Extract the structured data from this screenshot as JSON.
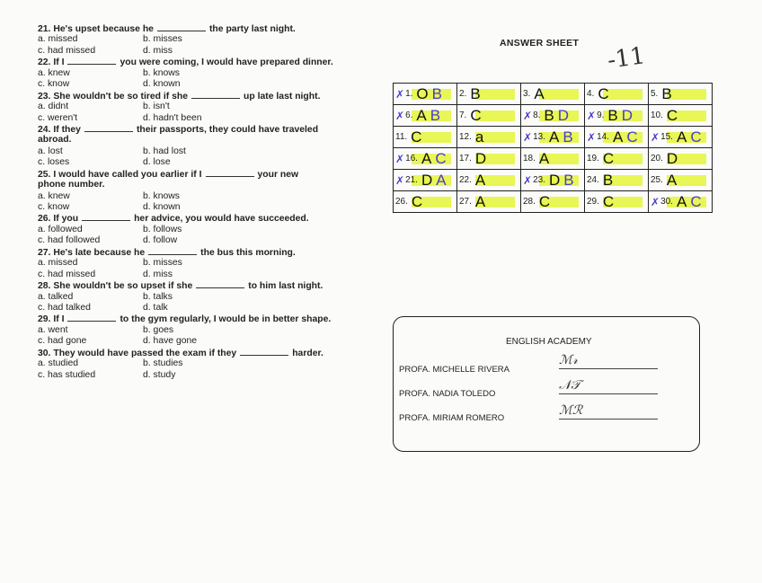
{
  "questions": [
    {
      "num": "21.",
      "pre": "He's upset because he",
      "post": "the party last night.",
      "options": [
        "a. missed",
        "b. misses",
        "c. had missed",
        "d. miss"
      ]
    },
    {
      "num": "22.",
      "pre": "If I",
      "post": "you were coming, I would have prepared dinner.",
      "options": [
        "a. knew",
        "b. knows",
        "c. know",
        "d. known"
      ]
    },
    {
      "num": "23.",
      "pre": "She wouldn't be so tired if she",
      "post": "up late last night.",
      "options": [
        "a. didnt",
        "b. isn't",
        "c. weren't",
        "d. hadn't been"
      ]
    },
    {
      "num": "24.",
      "pre": "If they",
      "post": "their passports, they could have traveled",
      "post2": "abroad.",
      "options": [
        "a. lost",
        "b. had lost",
        "c. loses",
        "d. lose"
      ]
    },
    {
      "num": "25.",
      "pre": "I would have called you earlier if I",
      "post": "your new",
      "post2": "phone number.",
      "options": [
        "a. knew",
        "b. knows",
        "c. know",
        "d. known"
      ]
    },
    {
      "num": "26.",
      "pre": "If you",
      "post": "her advice, you would have succeeded.",
      "options": [
        "a. followed",
        "b. follows",
        "c. had followed",
        "d. follow"
      ]
    },
    {
      "num": "27.",
      "pre": "He's late because he",
      "post": "the bus this morning.",
      "options": [
        "a. missed",
        "b. misses",
        "c. had missed",
        "d. miss"
      ]
    },
    {
      "num": "28.",
      "pre": "She wouldn't be so upset if she",
      "post": "to him last night.",
      "options": [
        "a. talked",
        "b. talks",
        "c. had talked",
        "d. talk"
      ]
    },
    {
      "num": "29.",
      "pre": "If I",
      "post": "to the gym regularly, I would be in better shape.",
      "options": [
        "a. went",
        "b. goes",
        "c. had gone",
        "d. have gone"
      ]
    },
    {
      "num": "30.",
      "pre": "They would have passed the exam if they",
      "post": "harder.",
      "options": [
        "a. studied",
        "b. studies",
        "c. has studied",
        "d. study"
      ]
    }
  ],
  "answer_sheet": {
    "title": "ANSWER SHEET",
    "score": "-11",
    "highlight_color": "#e4f53a",
    "correction_color": "#4b3cc9",
    "cells": [
      {
        "num": "1.",
        "answer": "O",
        "correction": "B",
        "wrong": true
      },
      {
        "num": "2.",
        "answer": "B"
      },
      {
        "num": "3.",
        "answer": "A"
      },
      {
        "num": "4.",
        "answer": "C"
      },
      {
        "num": "5.",
        "answer": "B"
      },
      {
        "num": "6.",
        "answer": "A",
        "correction": "B",
        "wrong": true
      },
      {
        "num": "7.",
        "answer": "C"
      },
      {
        "num": "8.",
        "answer": "B",
        "correction": "D",
        "wrong": true
      },
      {
        "num": "9.",
        "answer": "B",
        "correction": "D",
        "wrong": true
      },
      {
        "num": "10.",
        "answer": "C"
      },
      {
        "num": "11.",
        "answer": "C"
      },
      {
        "num": "12.",
        "answer": "a"
      },
      {
        "num": "13.",
        "answer": "A",
        "correction": "B",
        "wrong": true
      },
      {
        "num": "14.",
        "answer": "A",
        "correction": "C",
        "wrong": true
      },
      {
        "num": "15.",
        "answer": "A",
        "correction": "C",
        "wrong": true
      },
      {
        "num": "16.",
        "answer": "A",
        "correction": "C",
        "wrong": true
      },
      {
        "num": "17.",
        "answer": "D"
      },
      {
        "num": "18.",
        "answer": "A"
      },
      {
        "num": "19.",
        "answer": "C"
      },
      {
        "num": "20.",
        "answer": "D"
      },
      {
        "num": "21.",
        "answer": "D",
        "correction": "A",
        "wrong": true
      },
      {
        "num": "22.",
        "answer": "A"
      },
      {
        "num": "23.",
        "answer": "D",
        "correction": "B",
        "wrong": true
      },
      {
        "num": "24.",
        "answer": "B"
      },
      {
        "num": "25.",
        "answer": "A"
      },
      {
        "num": "26.",
        "answer": "C"
      },
      {
        "num": "27.",
        "answer": "A"
      },
      {
        "num": "28.",
        "answer": "C"
      },
      {
        "num": "29.",
        "answer": "C"
      },
      {
        "num": "30.",
        "answer": "A",
        "correction": "C",
        "wrong": true
      }
    ]
  },
  "key_box": {
    "academy": "ENGLISH ACADEMY",
    "teachers": [
      "PROFA. MICHELLE RIVERA",
      "PROFA. NADIA TOLEDO",
      "PROFA. MIRIAM ROMERO"
    ]
  }
}
